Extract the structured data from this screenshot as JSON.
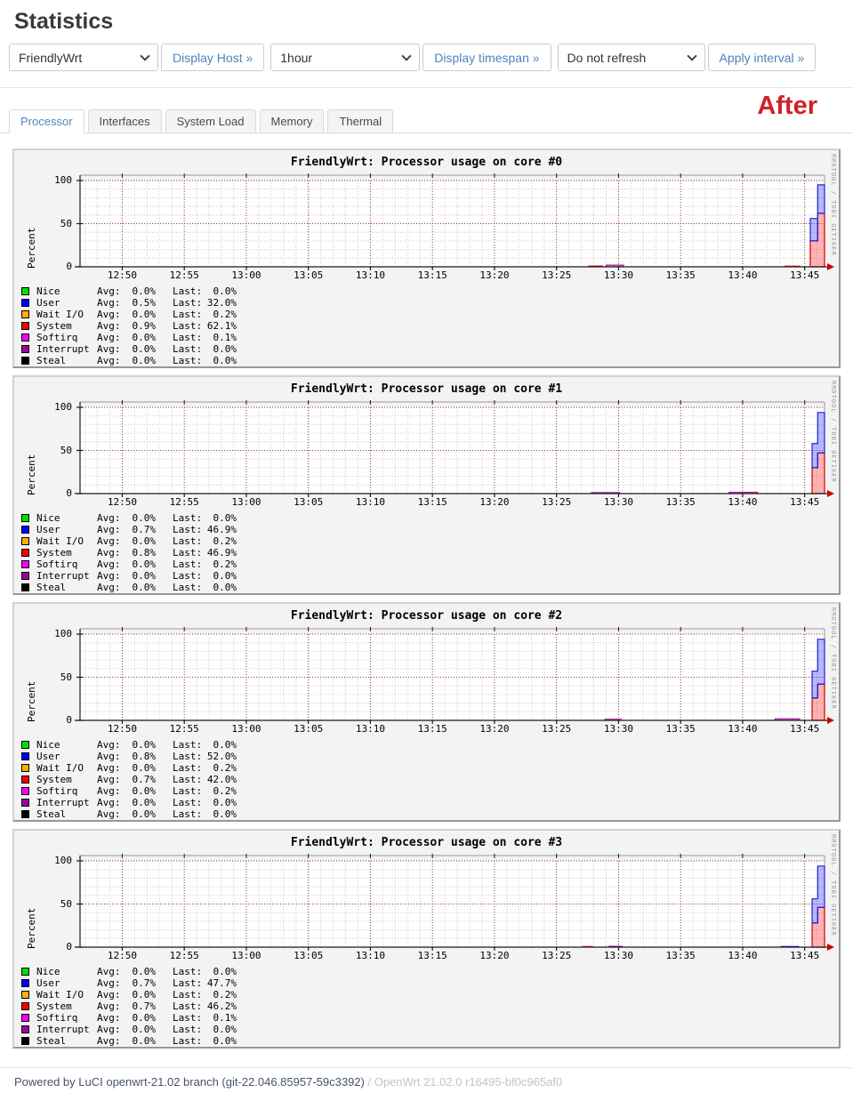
{
  "page": {
    "title": "Statistics",
    "annotation": "After"
  },
  "controls": {
    "host": {
      "value": "FriendlyWrt",
      "button": "Display Host »"
    },
    "timespan": {
      "value": "1hour",
      "button": "Display timespan »"
    },
    "refresh": {
      "value": "Do not refresh",
      "button": "Apply interval »"
    }
  },
  "tabs": [
    {
      "label": "Processor",
      "active": true
    },
    {
      "label": "Interfaces",
      "active": false
    },
    {
      "label": "System Load",
      "active": false
    },
    {
      "label": "Memory",
      "active": false
    },
    {
      "label": "Thermal",
      "active": false
    }
  ],
  "chart_common": {
    "type": "area-stacked",
    "ylabel": "Percent",
    "yticks": [
      0,
      50,
      100
    ],
    "ylim": [
      0,
      100
    ],
    "xticks": [
      "12:50",
      "12:55",
      "13:00",
      "13:05",
      "13:10",
      "13:15",
      "13:20",
      "13:25",
      "13:30",
      "13:35",
      "13:40",
      "13:45"
    ],
    "x_window_minutes": 60,
    "avg_label": "Avg:",
    "last_label": "Last:",
    "watermark": "RRDTOOL / TOBI OETIKER",
    "series_colors": {
      "Nice": "#00e000",
      "User": "#0000ff",
      "Wait I/O": "#ffb000",
      "System": "#ff0000",
      "Softirq": "#ff00ff",
      "Interrupt": "#a000a0",
      "Steal": "#000000"
    }
  },
  "chart_data": [
    {
      "title": "FriendlyWrt: Processor usage on core #0",
      "legend": [
        {
          "name": "Nice",
          "avg": "0.0%",
          "last": "0.0%"
        },
        {
          "name": "User",
          "avg": "0.5%",
          "last": "32.0%"
        },
        {
          "name": "Wait I/O",
          "avg": "0.0%",
          "last": "0.2%"
        },
        {
          "name": "System",
          "avg": "0.9%",
          "last": "62.1%"
        },
        {
          "name": "Softirq",
          "avg": "0.0%",
          "last": "0.1%"
        },
        {
          "name": "Interrupt",
          "avg": "0.0%",
          "last": "0.0%"
        },
        {
          "name": "Steal",
          "avg": "0.0%",
          "last": "0.0%"
        }
      ],
      "spike_steps": [
        [
          58.85,
          59.45,
          30,
          56
        ],
        [
          59.45,
          60,
          62,
          95
        ]
      ],
      "bumps": [
        [
          41.0,
          42.1,
          1.0,
          "System"
        ],
        [
          42.4,
          43.8,
          2.0,
          "Interrupt"
        ],
        [
          56.8,
          58.0,
          0.8,
          "System"
        ]
      ]
    },
    {
      "title": "FriendlyWrt: Processor usage on core #1",
      "legend": [
        {
          "name": "Nice",
          "avg": "0.0%",
          "last": "0.0%"
        },
        {
          "name": "User",
          "avg": "0.7%",
          "last": "46.9%"
        },
        {
          "name": "Wait I/O",
          "avg": "0.0%",
          "last": "0.2%"
        },
        {
          "name": "System",
          "avg": "0.8%",
          "last": "46.9%"
        },
        {
          "name": "Softirq",
          "avg": "0.0%",
          "last": "0.2%"
        },
        {
          "name": "Interrupt",
          "avg": "0.0%",
          "last": "0.0%"
        },
        {
          "name": "Steal",
          "avg": "0.0%",
          "last": "0.0%"
        }
      ],
      "spike_steps": [
        [
          59.0,
          59.45,
          30,
          58
        ],
        [
          59.45,
          60,
          47,
          94
        ]
      ],
      "bumps": [
        [
          41.2,
          43.5,
          1.2,
          "Interrupt"
        ],
        [
          52.3,
          54.6,
          1.5,
          "Interrupt"
        ]
      ]
    },
    {
      "title": "FriendlyWrt: Processor usage on core #2",
      "legend": [
        {
          "name": "Nice",
          "avg": "0.0%",
          "last": "0.0%"
        },
        {
          "name": "User",
          "avg": "0.8%",
          "last": "52.0%"
        },
        {
          "name": "Wait I/O",
          "avg": "0.0%",
          "last": "0.2%"
        },
        {
          "name": "System",
          "avg": "0.7%",
          "last": "42.0%"
        },
        {
          "name": "Softirq",
          "avg": "0.0%",
          "last": "0.2%"
        },
        {
          "name": "Interrupt",
          "avg": "0.0%",
          "last": "0.0%"
        },
        {
          "name": "Steal",
          "avg": "0.0%",
          "last": "0.0%"
        }
      ],
      "spike_steps": [
        [
          59.0,
          59.45,
          26,
          57
        ],
        [
          59.45,
          60,
          42,
          94
        ]
      ],
      "bumps": [
        [
          42.3,
          43.6,
          1.3,
          "Interrupt"
        ],
        [
          56.0,
          58.0,
          1.8,
          "Interrupt"
        ]
      ]
    },
    {
      "title": "FriendlyWrt: Processor usage on core #3",
      "legend": [
        {
          "name": "Nice",
          "avg": "0.0%",
          "last": "0.0%"
        },
        {
          "name": "User",
          "avg": "0.7%",
          "last": "47.7%"
        },
        {
          "name": "Wait I/O",
          "avg": "0.0%",
          "last": "0.2%"
        },
        {
          "name": "System",
          "avg": "0.7%",
          "last": "46.2%"
        },
        {
          "name": "Softirq",
          "avg": "0.0%",
          "last": "0.1%"
        },
        {
          "name": "Interrupt",
          "avg": "0.0%",
          "last": "0.0%"
        },
        {
          "name": "Steal",
          "avg": "0.0%",
          "last": "0.0%"
        }
      ],
      "spike_steps": [
        [
          59.0,
          59.45,
          28,
          56
        ],
        [
          59.45,
          60,
          46,
          94
        ]
      ],
      "bumps": [
        [
          40.5,
          41.3,
          0.8,
          "System"
        ],
        [
          42.6,
          43.7,
          1.0,
          "Interrupt"
        ],
        [
          56.5,
          57.9,
          0.8,
          "User"
        ]
      ]
    }
  ],
  "footer": {
    "powered": "Powered by LuCI openwrt-21.02 branch (git-22.046.85957-59c3392)",
    "version": "/ OpenWrt 21.02.0 r16495-bf0c965af0"
  }
}
